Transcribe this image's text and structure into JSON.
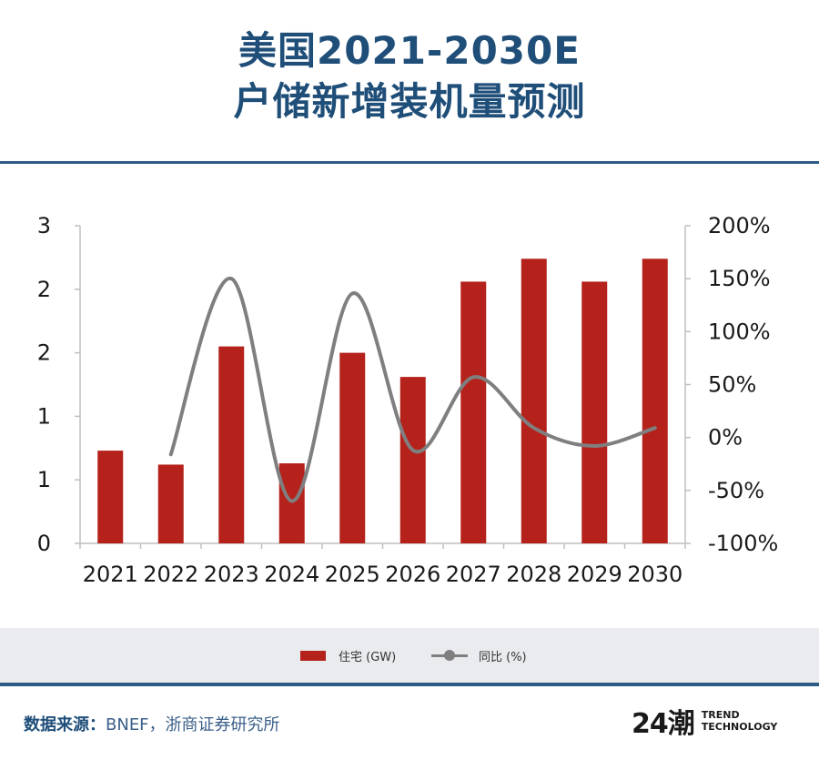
{
  "title": {
    "line1": "美国2021-2030E",
    "line2": "户储新增装机量预测"
  },
  "chart_data": {
    "type": "bar",
    "categories": [
      "2021",
      "2022",
      "2023",
      "2024",
      "2025",
      "2026",
      "2027",
      "2028",
      "2029",
      "2030"
    ],
    "series": [
      {
        "name": "住宅 (GW)",
        "kind": "bar",
        "axis": "left",
        "color": "#b5221c",
        "values": [
          0.73,
          0.62,
          1.55,
          0.63,
          1.5,
          1.31,
          2.06,
          2.24,
          2.06,
          2.24
        ]
      },
      {
        "name": "同比 (%)",
        "kind": "line",
        "axis": "right",
        "color": "#7f7f7f",
        "values": [
          null,
          -16,
          150,
          -60,
          136,
          -12,
          57,
          9,
          -8,
          9
        ]
      }
    ],
    "left_axis": {
      "ylim": [
        0,
        2.5
      ],
      "ticks": [
        0,
        0.5,
        1,
        1.5,
        2,
        2.5
      ],
      "tick_labels": [
        "0",
        "1",
        "1",
        "2",
        "2",
        "3"
      ]
    },
    "right_axis": {
      "ylim": [
        -100,
        200
      ],
      "ticks": [
        -100,
        -50,
        0,
        50,
        100,
        150,
        200
      ],
      "tick_labels": [
        "-100%",
        "-50%",
        "0%",
        "50%",
        "100%",
        "150%",
        "200%"
      ]
    },
    "legend_position": "bottom"
  },
  "legend": {
    "bar_label": "住宅 (GW)",
    "line_label": "同比 (%)"
  },
  "footer": {
    "source_label": "数据来源：",
    "source_text": "BNEF，浙商证券研究所",
    "logo_mark": "24潮",
    "logo_line1": "TREND",
    "logo_line2": "TECHNOLOGY"
  }
}
